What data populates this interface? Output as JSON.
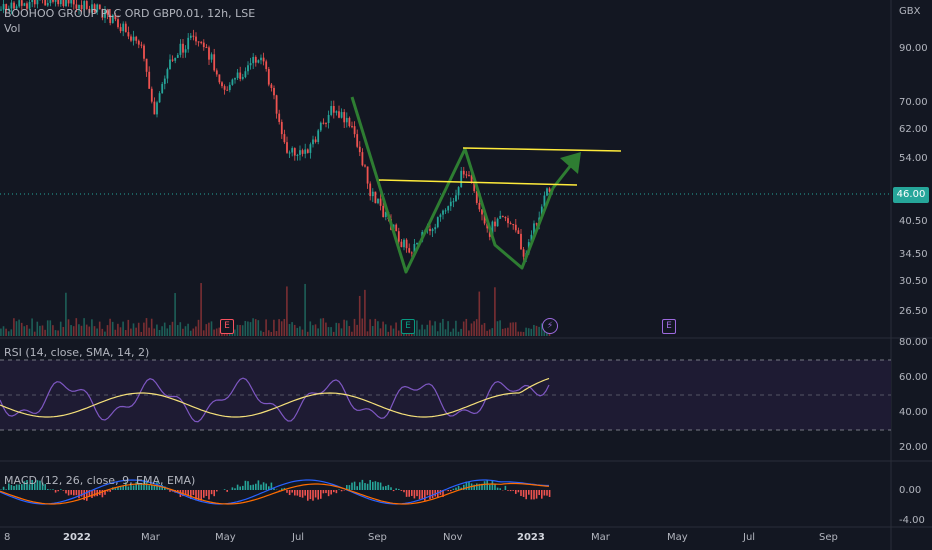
{
  "header": {
    "title": "BOOHOO GROUP PLC ORD GBP0.01, 12h, LSE",
    "vol_label": "Vol",
    "currency": "GBX"
  },
  "price_axis": {
    "labels": [
      "90.00",
      "70.00",
      "62.00",
      "54.00",
      "40.50",
      "34.50",
      "30.50",
      "26.50"
    ],
    "current_price": "46.00"
  },
  "rsi_panel": {
    "title": "RSI (14, close, SMA, 14, 2)",
    "axis_labels": [
      "80.00",
      "60.00",
      "40.00",
      "20.00"
    ]
  },
  "macd_panel": {
    "title": "MACD (12, 26, close, 9, EMA, EMA)",
    "axis_labels": [
      "0.00",
      "-4.00"
    ]
  },
  "time_axis": {
    "labels": [
      "8",
      "2022",
      "Mar",
      "May",
      "Jul",
      "Sep",
      "Nov",
      "2023",
      "Mar",
      "May",
      "Jul",
      "Sep"
    ]
  },
  "event_badges": {
    "earnings": "E"
  },
  "colors": {
    "background": "#131722",
    "up": "#26a69a",
    "down": "#ef5350",
    "pattern_green": "#2e7d32",
    "resistance_yellow": "#ffeb3b",
    "rsi_line": "#7e57c2",
    "rsi_ma": "#f5e07a",
    "macd_line": "#2962ff",
    "signal_line": "#ff6d00"
  }
}
